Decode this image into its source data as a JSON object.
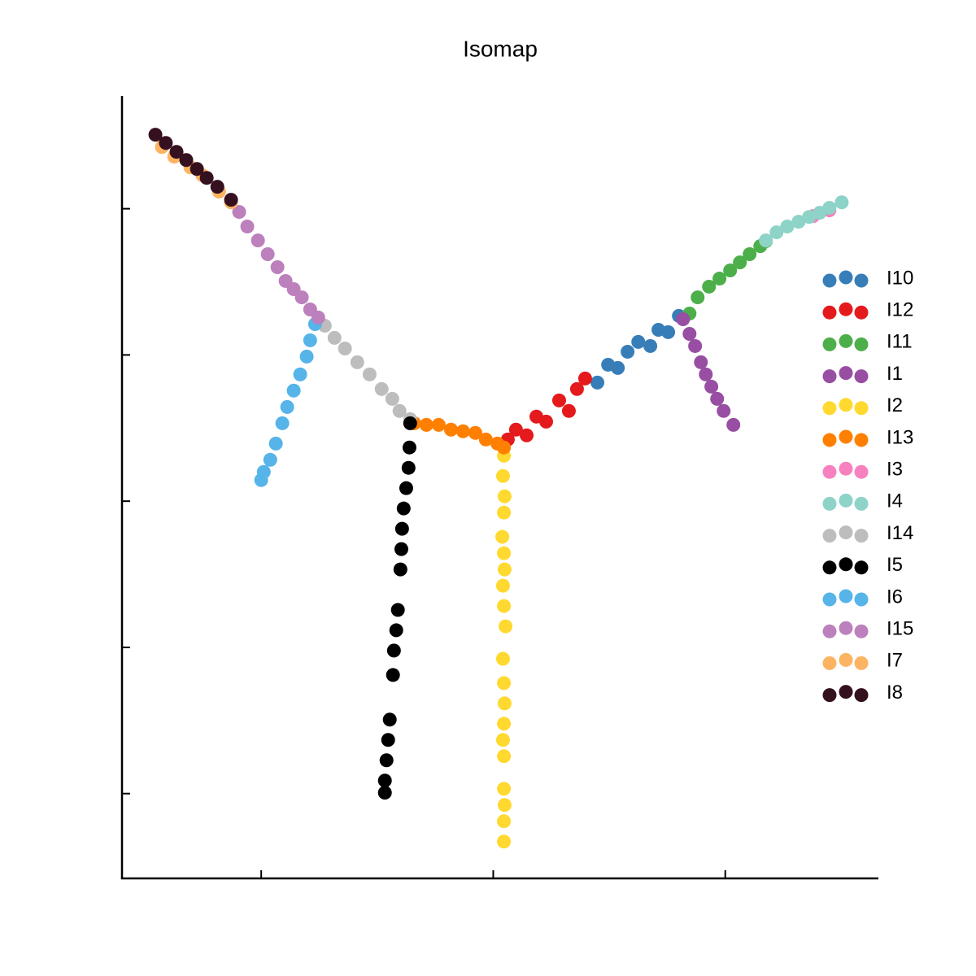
{
  "chart_data": {
    "type": "scatter",
    "title": "Isomap",
    "xlim": [
      -16.0,
      16.6
    ],
    "ylim": [
      -25.8,
      27.6
    ],
    "xticks": [
      -10,
      0,
      10
    ],
    "yticks": [
      -20,
      -10,
      0,
      10,
      20
    ],
    "series": [
      {
        "name": "I10",
        "color": "#377eb8",
        "x": [
          4.49,
          4.95,
          5.37,
          5.79,
          6.25,
          6.77,
          7.12,
          7.54,
          8.0
        ],
        "values": [
          8.11,
          9.33,
          9.11,
          10.22,
          10.89,
          10.61,
          11.72,
          11.56,
          12.67
        ]
      },
      {
        "name": "I12",
        "color": "#e41a1c",
        "x": [
          0.63,
          0.98,
          1.44,
          1.86,
          2.28,
          2.84,
          3.26,
          3.61,
          3.96
        ],
        "values": [
          4.22,
          4.89,
          4.5,
          5.78,
          5.44,
          6.89,
          6.17,
          7.67,
          8.39
        ]
      },
      {
        "name": "I11",
        "color": "#4daf4a",
        "x": [
          8.46,
          8.81,
          9.3,
          9.75,
          10.21,
          10.63,
          11.05,
          11.51,
          11.75
        ],
        "values": [
          12.83,
          13.94,
          14.67,
          15.22,
          15.78,
          16.33,
          16.89,
          17.44,
          17.78
        ]
      },
      {
        "name": "I1",
        "color": "#984ea3",
        "x": [
          8.18,
          8.46,
          8.7,
          8.95,
          9.16,
          9.4,
          9.65,
          9.93,
          10.35
        ],
        "values": [
          12.44,
          11.44,
          10.61,
          9.5,
          8.67,
          7.83,
          7.0,
          6.17,
          5.22
        ]
      },
      {
        "name": "I2",
        "color": "#ffd92f",
        "x": [
          0.46,
          0.42,
          0.49,
          0.46,
          0.39,
          0.46,
          0.49,
          0.42,
          0.46,
          0.53,
          0.42,
          0.46,
          0.49,
          0.46,
          0.42,
          0.46,
          0.46,
          0.49,
          0.46,
          0.46
        ],
        "values": [
          3.11,
          1.72,
          0.33,
          -0.78,
          -2.44,
          -3.56,
          -4.67,
          -5.78,
          -7.17,
          -8.56,
          -10.78,
          -12.44,
          -13.83,
          -15.22,
          -16.33,
          -17.44,
          -19.67,
          -20.78,
          -21.89,
          -23.28
        ]
      },
      {
        "name": "I13",
        "color": "#ff7f00",
        "x": [
          -3.4,
          -2.88,
          -2.35,
          -1.82,
          -1.3,
          -0.77,
          -0.32,
          0.18,
          0.46
        ],
        "values": [
          5.33,
          5.22,
          5.22,
          4.89,
          4.78,
          4.67,
          4.22,
          3.94,
          3.67
        ]
      },
      {
        "name": "I3",
        "color": "#f781bf",
        "x": [
          13.79,
          14.49
        ],
        "values": [
          19.5,
          19.89
        ]
      },
      {
        "name": "I4",
        "color": "#8dd3c7",
        "x": [
          11.75,
          12.21,
          12.67,
          13.16,
          13.61,
          14.07,
          14.49,
          15.02
        ],
        "values": [
          17.83,
          18.39,
          18.78,
          19.11,
          19.44,
          19.72,
          20.06,
          20.44
        ]
      },
      {
        "name": "I14",
        "color": "#bdbdbd",
        "x": [
          -7.26,
          -6.84,
          -6.39,
          -5.86,
          -5.33,
          -4.81,
          -4.35,
          -4.04,
          -3.58
        ],
        "values": [
          12.0,
          11.17,
          10.44,
          9.5,
          8.67,
          7.67,
          7.0,
          6.17,
          5.61
        ]
      },
      {
        "name": "I5",
        "color": "#000000",
        "x": [
          -3.58,
          -3.61,
          -3.65,
          -3.75,
          -3.86,
          -3.93,
          -3.96,
          -4.0,
          -4.11,
          -4.18,
          -4.28,
          -4.32,
          -4.46,
          -4.53,
          -4.6,
          -4.67,
          -4.67
        ],
        "values": [
          5.33,
          3.67,
          2.28,
          0.89,
          -0.5,
          -1.89,
          -3.28,
          -4.67,
          -7.44,
          -8.83,
          -10.22,
          -11.89,
          -14.94,
          -16.33,
          -17.72,
          -19.11,
          -19.94
        ]
      },
      {
        "name": "I6",
        "color": "#56b4e9",
        "x": [
          -7.68,
          -7.89,
          -8.04,
          -8.32,
          -8.6,
          -8.88,
          -9.09,
          -9.37,
          -9.61,
          -9.89,
          -10.0
        ],
        "values": [
          12.11,
          11.0,
          9.89,
          8.67,
          7.56,
          6.44,
          5.33,
          3.94,
          2.83,
          2.0,
          1.44
        ]
      },
      {
        "name": "I15",
        "color": "#bc80bd",
        "x": [
          -10.95,
          -10.6,
          -10.14,
          -9.72,
          -9.3,
          -8.95,
          -8.6,
          -8.25,
          -7.89,
          -7.54
        ],
        "values": [
          19.78,
          18.78,
          17.83,
          16.89,
          16.0,
          15.06,
          14.5,
          13.94,
          13.11,
          12.56
        ]
      },
      {
        "name": "I7",
        "color": "#fdb462",
        "x": [
          -14.28,
          -13.75,
          -13.05,
          -12.53,
          -11.82,
          -11.3
        ],
        "values": [
          24.22,
          23.56,
          22.83,
          22.28,
          21.17,
          20.44
        ]
      },
      {
        "name": "I8",
        "color": "#35101f",
        "x": [
          -14.56,
          -14.11,
          -13.65,
          -13.23,
          -12.77,
          -12.35,
          -11.89,
          -11.3
        ],
        "values": [
          25.06,
          24.5,
          23.89,
          23.33,
          22.72,
          22.11,
          21.5,
          20.61
        ]
      }
    ]
  }
}
